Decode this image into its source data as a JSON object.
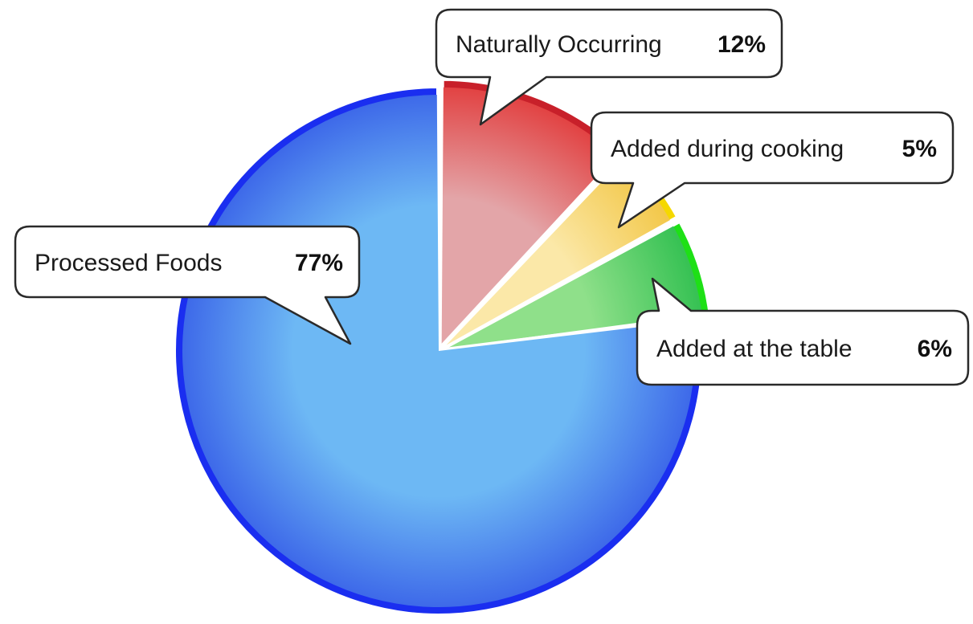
{
  "chart_data": {
    "type": "pie",
    "start_angle_deg": 0,
    "slices": [
      {
        "label": "Naturally Occurring",
        "value": 12,
        "value_label": "12%",
        "color": "#e23b3b",
        "rim": "#c8202a",
        "light": "#e3a5a8"
      },
      {
        "label": "Added during cooking",
        "value": 5,
        "value_label": "5%",
        "color": "#f2c542",
        "rim": "#f5d800",
        "light": "#fbe8a8"
      },
      {
        "label": "Added at the table",
        "value": 6,
        "value_label": "6%",
        "color": "#2fbf4f",
        "rim": "#1ee016",
        "light": "#8fe08a"
      },
      {
        "label": "Processed Foods",
        "value": 77,
        "value_label": "77%",
        "color": "#3a63e8",
        "rim": "#1a2ef0",
        "light": "#6db8f4"
      }
    ]
  }
}
